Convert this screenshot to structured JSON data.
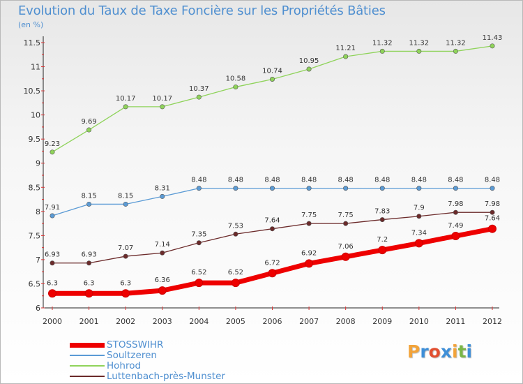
{
  "header": {
    "title": "Evolution du Taux de Taxe Foncière sur les Propriétés Bâties",
    "subtitle": "(en %)"
  },
  "logo": {
    "letters": [
      "P",
      "r",
      "o",
      "x",
      "i",
      "t",
      "i"
    ],
    "colors": [
      "#f2a33a",
      "#3e8fd8",
      "#e24f30",
      "#3e8fd8",
      "#f2a33a",
      "#7ab648",
      "#3e8fd8"
    ]
  },
  "chart_data": {
    "type": "line",
    "title": "Evolution du Taux de Taxe Foncière sur les Propriétés Bâties",
    "ylabel": "(en %)",
    "xlabel": "",
    "ylim": [
      6,
      11.5
    ],
    "grid": false,
    "legend_position": "bottom-left",
    "categories": [
      "2000",
      "2001",
      "2002",
      "2003",
      "2004",
      "2005",
      "2006",
      "2007",
      "2008",
      "2009",
      "2010",
      "2011",
      "2012"
    ],
    "y_ticks": [
      "6",
      "6.5",
      "7",
      "7.5",
      "8",
      "8.5",
      "9",
      "9.5",
      "10",
      "10.5",
      "11",
      "11.5"
    ],
    "series": [
      {
        "name": "STOSSWIHR",
        "color": "#ee0000",
        "values": [
          6.3,
          6.3,
          6.3,
          6.36,
          6.52,
          6.52,
          6.72,
          6.92,
          7.06,
          7.2,
          7.34,
          7.49,
          7.64
        ],
        "labels": [
          "6.3",
          "6.3",
          "6.3",
          "6.36",
          "6.52",
          "6.52",
          "6.72",
          "6.92",
          "7.06",
          "7.2",
          "7.34",
          "7.49",
          "7.64"
        ]
      },
      {
        "name": "Soultzeren",
        "color": "#5b9bd5",
        "values": [
          7.91,
          8.15,
          8.15,
          8.31,
          8.48,
          8.48,
          8.48,
          8.48,
          8.48,
          8.48,
          8.48,
          8.48,
          8.48
        ],
        "labels": [
          "7.91",
          "8.15",
          "8.15",
          "8.31",
          "8.48",
          "8.48",
          "8.48",
          "8.48",
          "8.48",
          "8.48",
          "8.48",
          "8.48",
          "8.48"
        ]
      },
      {
        "name": "Hohrod",
        "color": "#8fd35a",
        "values": [
          9.23,
          9.69,
          10.17,
          10.17,
          10.37,
          10.58,
          10.74,
          10.95,
          11.21,
          11.32,
          11.32,
          11.32,
          11.43
        ],
        "labels": [
          "9.23",
          "9.69",
          "10.17",
          "10.17",
          "10.37",
          "10.58",
          "10.74",
          "10.95",
          "11.21",
          "11.32",
          "11.32",
          "11.32",
          "11.43"
        ]
      },
      {
        "name": "Luttenbach-près-Munster",
        "color": "#6b2a2a",
        "values": [
          6.93,
          6.93,
          7.07,
          7.14,
          7.35,
          7.53,
          7.64,
          7.75,
          7.75,
          7.83,
          7.9,
          7.98,
          7.98
        ],
        "labels": [
          "6.93",
          "6.93",
          "7.07",
          "7.14",
          "7.35",
          "7.53",
          "7.64",
          "7.75",
          "7.75",
          "7.83",
          "7.9",
          "7.98",
          "7.98"
        ]
      }
    ]
  }
}
